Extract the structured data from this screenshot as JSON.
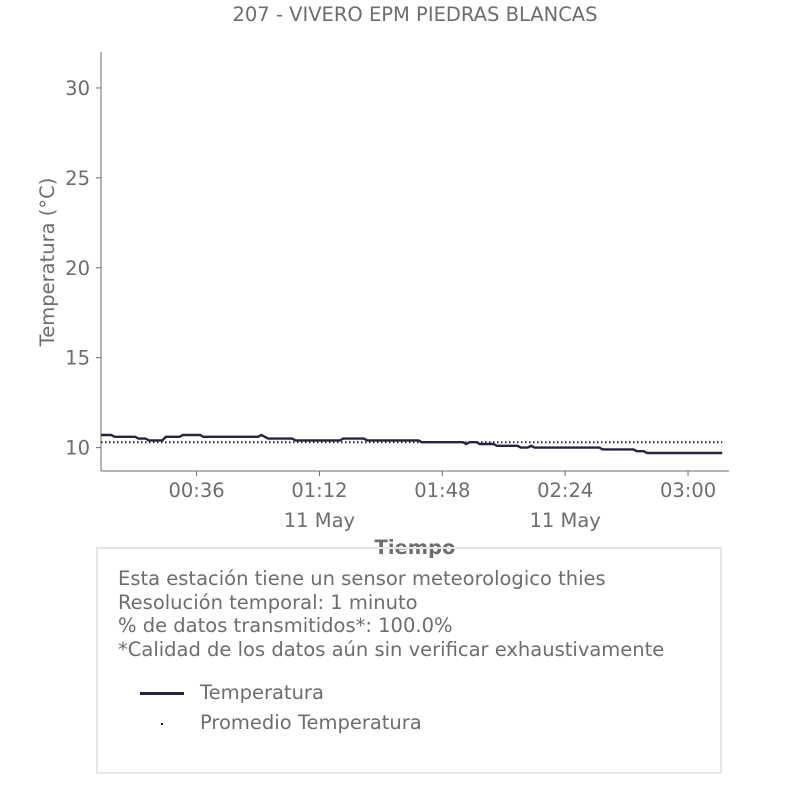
{
  "colors": {
    "series": "#252542",
    "text": "#6d6d6d",
    "axis": "#6d6d6d",
    "box_border": "#e6e6e6"
  },
  "chart_data": {
    "type": "line",
    "title": "207 - VIVERO EPM PIEDRAS BLANCAS",
    "xlabel": "Tiempo",
    "ylabel": "Temperatura (°C)",
    "x_unit": "time of day, 11 May",
    "xlim": [
      "00:08",
      "03:12"
    ],
    "ylim": [
      8.7,
      32
    ],
    "yticks": [
      10,
      15,
      20,
      25,
      30
    ],
    "xticks": [
      {
        "time": "00:36",
        "label": "00:36",
        "sublabel": ""
      },
      {
        "time": "01:12",
        "label": "01:12",
        "sublabel": "11 May"
      },
      {
        "time": "01:48",
        "label": "01:48",
        "sublabel": ""
      },
      {
        "time": "02:24",
        "label": "02:24",
        "sublabel": "11 May"
      },
      {
        "time": "03:00",
        "label": "03:00",
        "sublabel": ""
      }
    ],
    "grid": false,
    "series": [
      {
        "name": "Temperatura",
        "style": "solid",
        "points": [
          [
            "00:08",
            10.7
          ],
          [
            "00:11",
            10.7
          ],
          [
            "00:12",
            10.6
          ],
          [
            "00:18",
            10.6
          ],
          [
            "00:19",
            10.5
          ],
          [
            "00:21",
            10.5
          ],
          [
            "00:22",
            10.4
          ],
          [
            "00:26",
            10.4
          ],
          [
            "00:27",
            10.6
          ],
          [
            "00:31",
            10.6
          ],
          [
            "00:32",
            10.7
          ],
          [
            "00:37",
            10.7
          ],
          [
            "00:38",
            10.6
          ],
          [
            "00:54",
            10.6
          ],
          [
            "00:55",
            10.7
          ],
          [
            "00:56",
            10.6
          ],
          [
            "00:57",
            10.5
          ],
          [
            "01:04",
            10.5
          ],
          [
            "01:05",
            10.4
          ],
          [
            "01:18",
            10.4
          ],
          [
            "01:19",
            10.5
          ],
          [
            "01:25",
            10.5
          ],
          [
            "01:26",
            10.4
          ],
          [
            "01:41",
            10.4
          ],
          [
            "01:42",
            10.3
          ],
          [
            "01:54",
            10.3
          ],
          [
            "01:55",
            10.2
          ],
          [
            "01:56",
            10.3
          ],
          [
            "01:58",
            10.3
          ],
          [
            "01:59",
            10.2
          ],
          [
            "02:03",
            10.2
          ],
          [
            "02:04",
            10.1
          ],
          [
            "02:10",
            10.1
          ],
          [
            "02:11",
            10.0
          ],
          [
            "02:13",
            10.0
          ],
          [
            "02:14",
            10.1
          ],
          [
            "02:15",
            10.0
          ],
          [
            "02:34",
            10.0
          ],
          [
            "02:35",
            9.9
          ],
          [
            "02:44",
            9.9
          ],
          [
            "02:45",
            9.8
          ],
          [
            "02:47",
            9.8
          ],
          [
            "02:48",
            9.7
          ],
          [
            "03:10",
            9.7
          ]
        ]
      },
      {
        "name": "Promedio Temperatura",
        "style": "dotted",
        "value": 10.3,
        "points": [
          [
            "00:08",
            10.3
          ],
          [
            "03:10",
            10.3
          ]
        ]
      }
    ]
  },
  "info": {
    "lines": [
      "Esta estación tiene un sensor meteorologico thies",
      "Resolución temporal: 1 minuto",
      "% de datos transmitidos*: 100.0%",
      "*Calidad de los datos aún sin verificar exhaustivamente"
    ],
    "legend": [
      {
        "label": "Temperatura",
        "swatch": "line"
      },
      {
        "label": "Promedio Temperatura",
        "swatch": "dot"
      }
    ]
  }
}
